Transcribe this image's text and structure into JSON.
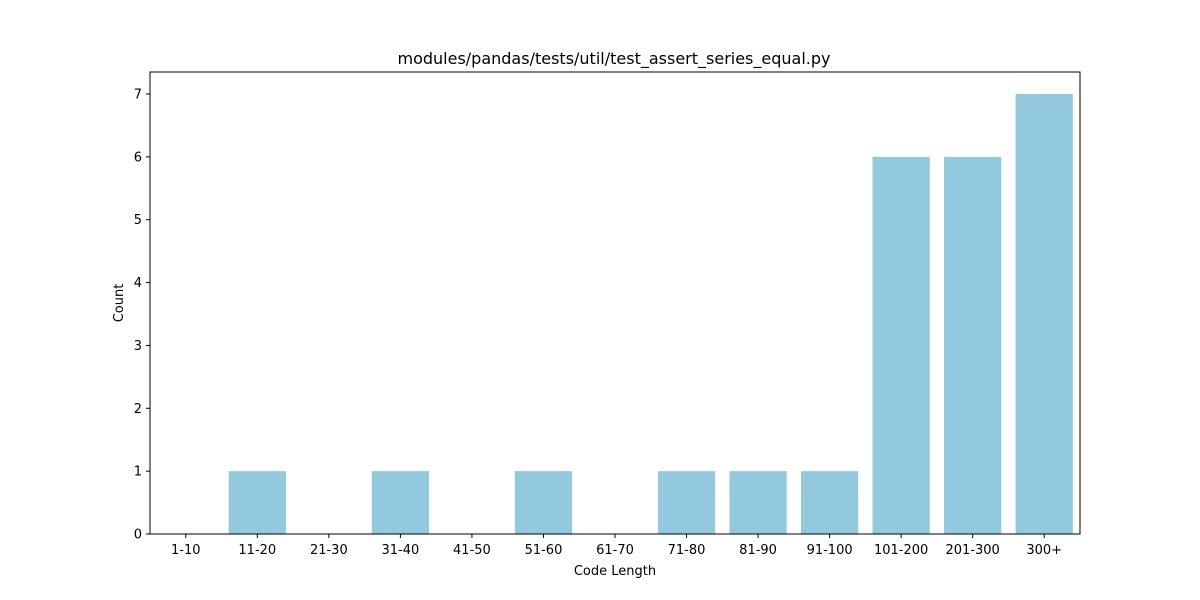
{
  "chart_data": {
    "type": "bar",
    "title": "modules/pandas/tests/util/test_assert_series_equal.py",
    "xlabel": "Code Length",
    "ylabel": "Count",
    "categories": [
      "1-10",
      "11-20",
      "21-30",
      "31-40",
      "41-50",
      "51-60",
      "61-70",
      "71-80",
      "81-90",
      "91-100",
      "101-200",
      "201-300",
      "300+"
    ],
    "values": [
      0,
      1,
      0,
      1,
      0,
      1,
      0,
      1,
      1,
      1,
      6,
      6,
      7
    ],
    "yticks": [
      0,
      1,
      2,
      3,
      4,
      5,
      6,
      7
    ],
    "ylim": [
      0,
      7.35
    ],
    "bar_color": "#92c9de",
    "grid": false
  }
}
